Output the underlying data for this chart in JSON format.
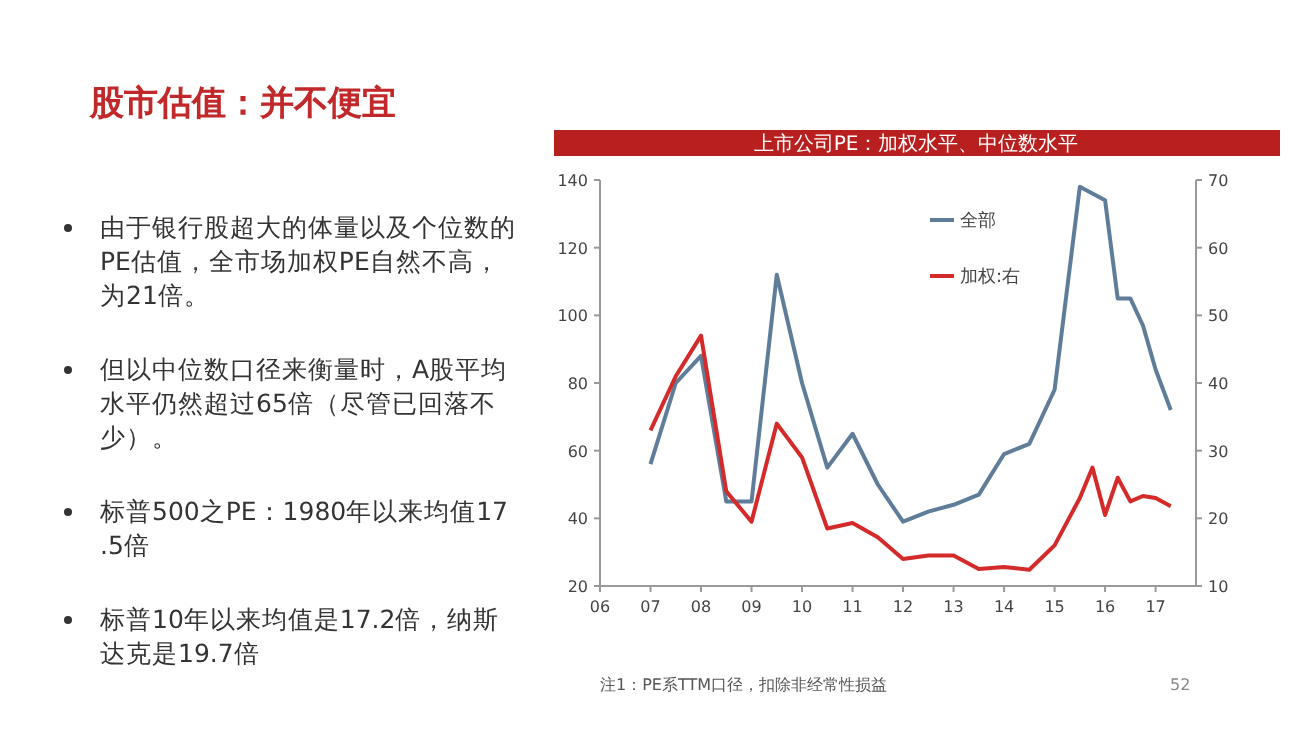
{
  "chart_data": {
    "type": "line",
    "title": "股市估值：并不便宜",
    "subtitle": "上市公司PE：加权水平、中位数水平",
    "xlim": [
      2006,
      2017.8
    ],
    "xticks": [
      {
        "value": 2006,
        "label": "06"
      },
      {
        "value": 2007,
        "label": "07"
      },
      {
        "value": 2008,
        "label": "08"
      },
      {
        "value": 2009,
        "label": "09"
      },
      {
        "value": 2010,
        "label": "10"
      },
      {
        "value": 2011,
        "label": "11"
      },
      {
        "value": 2012,
        "label": "12"
      },
      {
        "value": 2013,
        "label": "13"
      },
      {
        "value": 2014,
        "label": "14"
      },
      {
        "value": 2015,
        "label": "15"
      },
      {
        "value": 2016,
        "label": "16"
      },
      {
        "value": 2017,
        "label": "17"
      }
    ],
    "ylim": [
      20,
      140
    ],
    "yticks": [
      20,
      40,
      60,
      80,
      100,
      120,
      140
    ],
    "y2lim": [
      10,
      70
    ],
    "y2ticks": [
      10,
      20,
      30,
      40,
      50,
      60,
      70
    ],
    "legend": "top",
    "grid": false,
    "line_style": "solid",
    "series": [
      {
        "name": "全部",
        "color": "#5f7d98",
        "x": [
          2007,
          2007.5,
          2008,
          2008.5,
          2009,
          2009.5,
          2010,
          2010.5,
          2011,
          2011.5,
          2012,
          2012.5,
          2013,
          2013.5,
          2014,
          2014.5,
          2015,
          2015.5,
          2016,
          2016.25,
          2016.5,
          2016.75,
          2017,
          2017.3
        ],
        "values": [
          56,
          80,
          88,
          45,
          45,
          112,
          80,
          55,
          65,
          50,
          39,
          42,
          44,
          47,
          59,
          62,
          78,
          138,
          134,
          105,
          105,
          97,
          84,
          72
        ]
      },
      {
        "name": "加权:右",
        "color": "#d42a2a",
        "axis": "y2",
        "x": [
          2007,
          2007.5,
          2008,
          2008.5,
          2009,
          2009.5,
          2010,
          2010.5,
          2011,
          2011.5,
          2012,
          2012.5,
          2013,
          2013.5,
          2014,
          2014.5,
          2015,
          2015.5,
          2015.75,
          2016,
          2016.25,
          2016.5,
          2016.75,
          2017,
          2017.3
        ],
        "values": [
          33,
          41,
          47,
          24,
          19.5,
          34,
          29,
          18.5,
          19.3,
          17.2,
          14,
          14.5,
          14.5,
          12.5,
          12.8,
          12.4,
          16,
          23,
          27.5,
          20.5,
          26,
          22.5,
          23.3,
          23,
          21.8
        ]
      }
    ],
    "annotations": [
      "由于银行股超大的体量以及个位数的PE估值，全市场加权PE自然不高，为21倍。",
      "但以中位数口径来衡量时，A股平均水平仍然超过65倍（尽管已回落不少）。",
      "标普500之PE：1980年以来均值17.5倍",
      "标普10年以来均值是17.2倍，纳斯达克是19.7倍",
      "注1：PE系TTM口径，扣除非经常性损益",
      "52"
    ]
  }
}
